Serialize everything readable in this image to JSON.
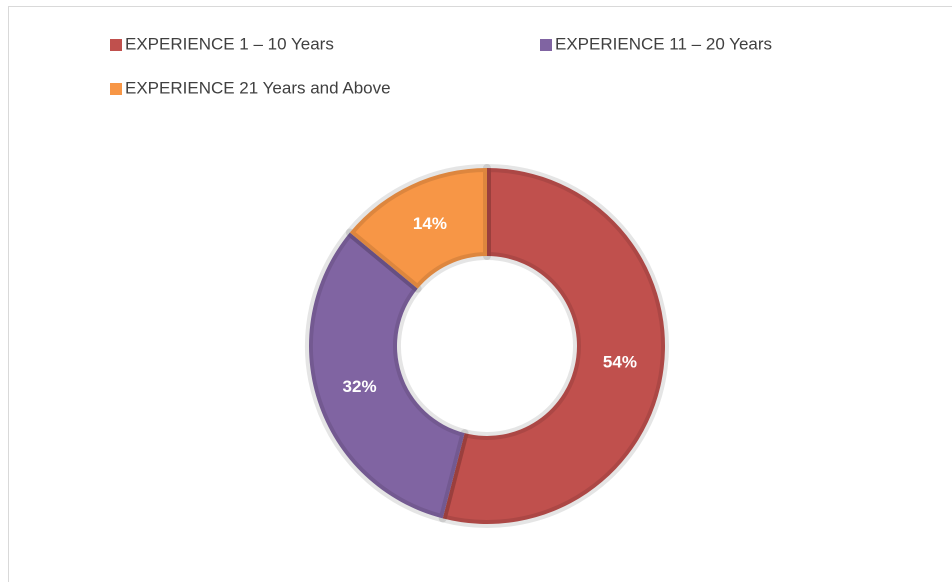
{
  "chart_data": {
    "type": "donut",
    "categories": [
      "EXPERIENCE 1 – 10 Years",
      "EXPERIENCE 11 – 20 Years",
      "EXPERIENCE 21 Years and Above"
    ],
    "values": [
      54,
      32,
      14
    ],
    "value_labels": [
      "54%",
      "32%",
      "14%"
    ],
    "colors": [
      "#c0504d",
      "#8064a2",
      "#f79646"
    ],
    "legend": "top"
  }
}
